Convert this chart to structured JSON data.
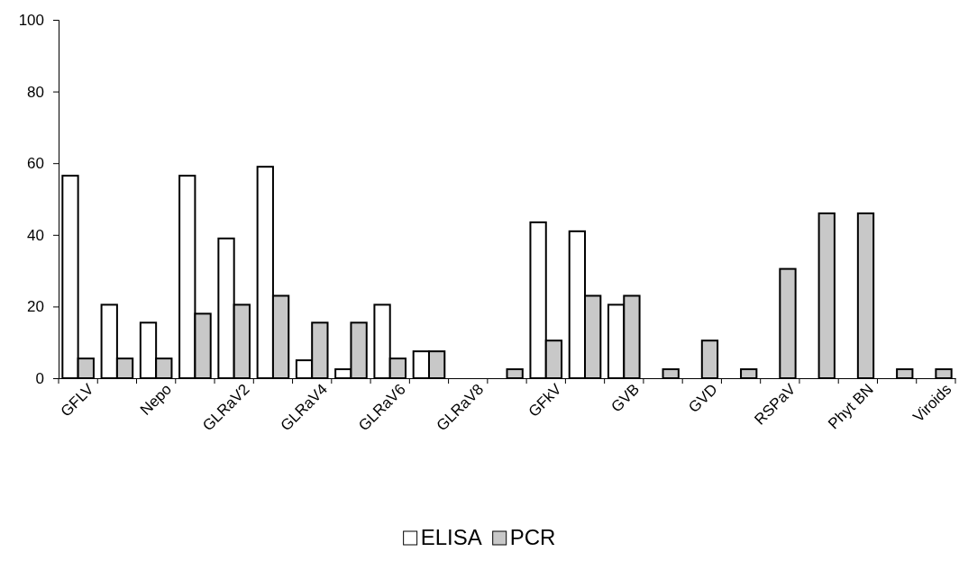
{
  "chart_data": {
    "type": "bar",
    "categories": [
      "GFLV",
      null,
      "Nepo",
      null,
      "GLRaV2",
      null,
      "GLRaV4",
      null,
      "GLRaV6",
      null,
      "GLRaV8",
      null,
      "GFkV",
      null,
      "GVB",
      null,
      "GVD",
      null,
      "RSPaV",
      null,
      "Phyt BN",
      null,
      "Viroids"
    ],
    "series": [
      {
        "name": "ELISA",
        "color": "#ffffff",
        "values": [
          56.5,
          20.5,
          15.5,
          56.5,
          39,
          59,
          5,
          2.5,
          20.5,
          7.5,
          null,
          null,
          43.5,
          41,
          20.5,
          null,
          null,
          null,
          null,
          null,
          null,
          null,
          null
        ]
      },
      {
        "name": "PCR",
        "color": "#c8c8c8",
        "values": [
          5.5,
          5.5,
          5.5,
          18,
          20.5,
          23,
          15.5,
          15.5,
          5.5,
          7.5,
          null,
          2.5,
          10.5,
          23,
          23,
          2.5,
          10.5,
          2.5,
          30.5,
          46,
          46,
          2.5,
          2.5
        ]
      }
    ],
    "ylim": [
      0,
      100
    ],
    "yticks": [
      0,
      20,
      40,
      60,
      80,
      100
    ],
    "grid": false,
    "legend": "bottom"
  }
}
